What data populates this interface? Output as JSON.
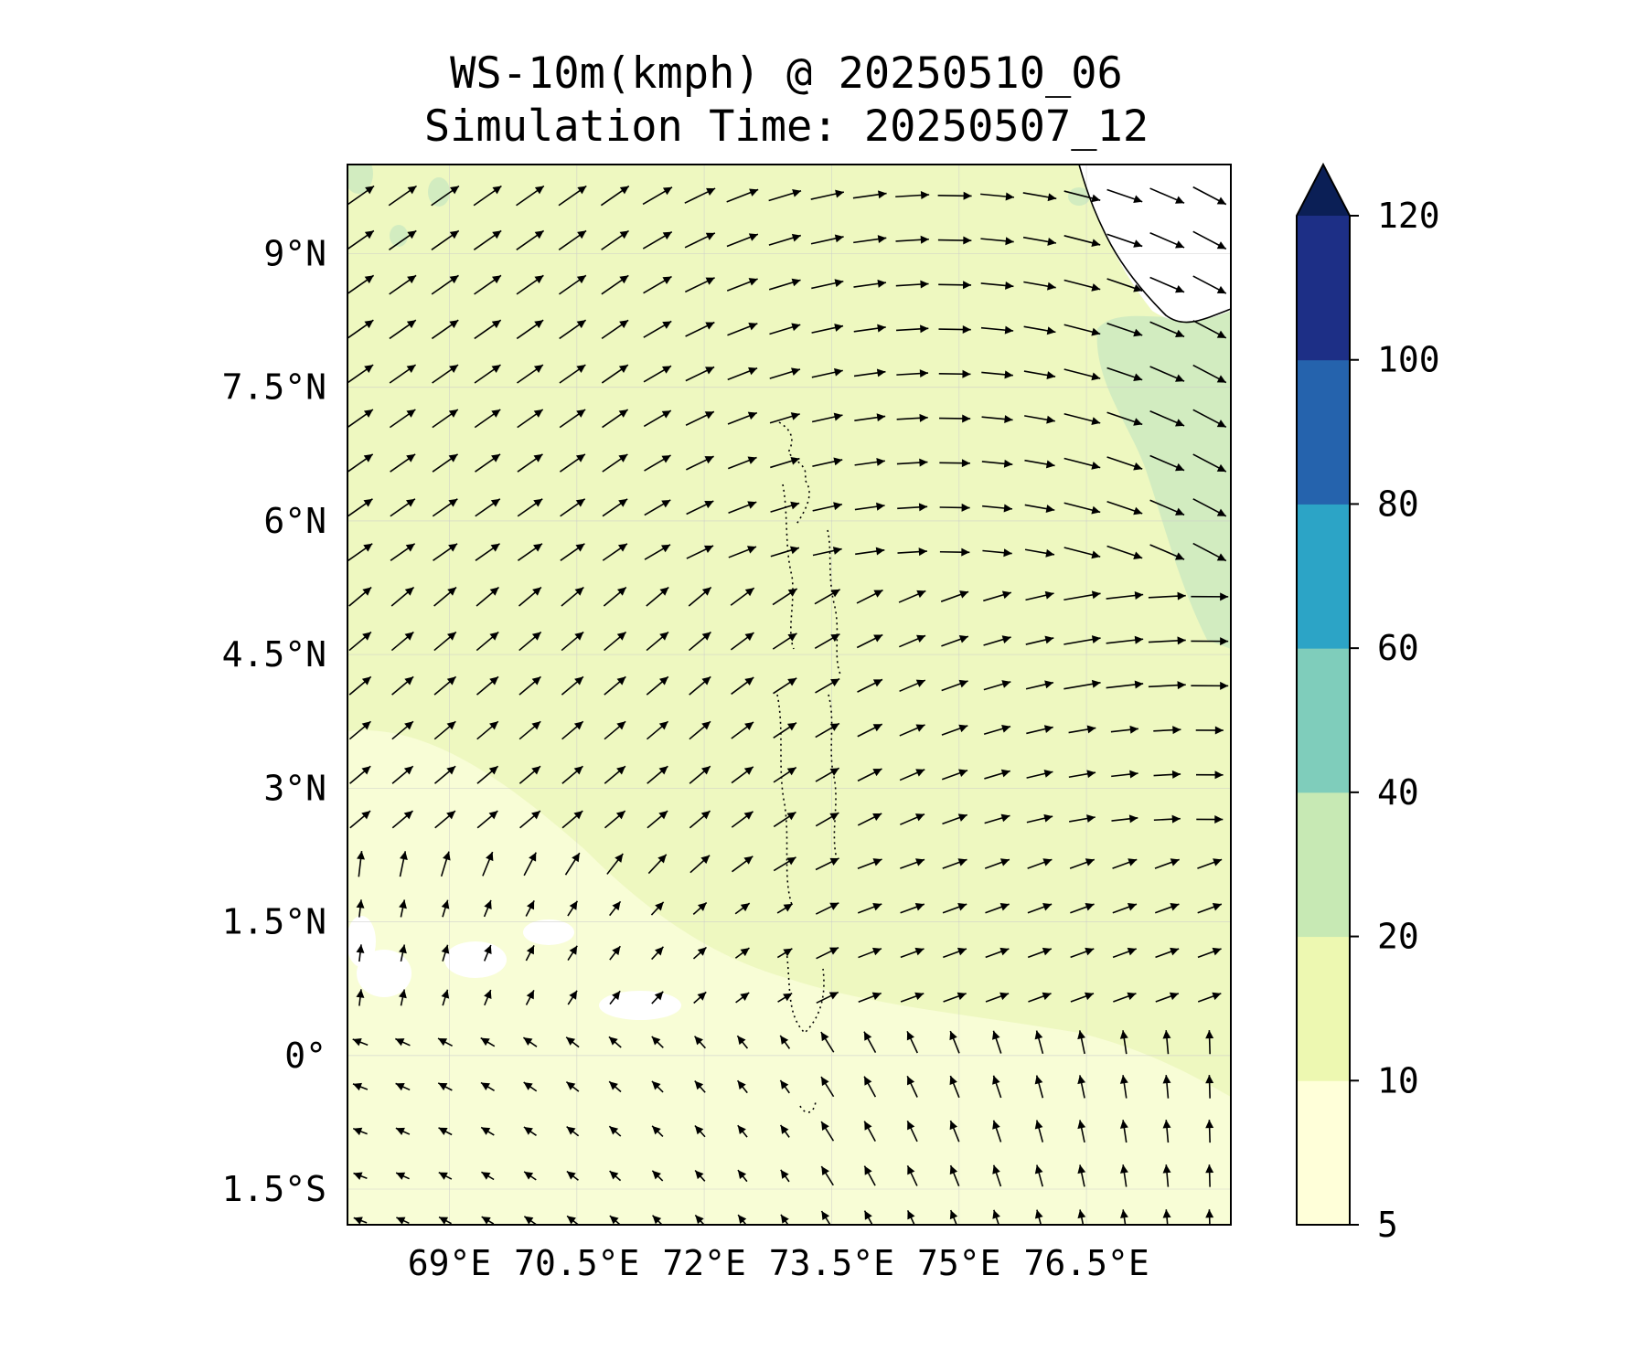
{
  "title": "WS-10m(kmph) @ 20250510_06",
  "subtitle": "Simulation Time: 20250507_12",
  "chart_data": {
    "type": "heatmap",
    "variable": "10 m wind speed with wind direction vectors",
    "lon_range": [
      67.8,
      78.2
    ],
    "lat_range": [
      -1.9,
      10.0
    ],
    "lon_ticks": [
      69,
      70.5,
      72,
      73.5,
      75,
      76.5
    ],
    "lon_tick_labels": [
      "69°E",
      "70.5°E",
      "72°E",
      "73.5°E",
      "75°E",
      "76.5°E"
    ],
    "lat_ticks": [
      9,
      7.5,
      6,
      4.5,
      3,
      1.5,
      0,
      -1.5
    ],
    "lat_tick_labels": [
      "9°N",
      "7.5°N",
      "6°N",
      "4.5°N",
      "3°N",
      "1.5°N",
      "0°",
      "1.5°S"
    ],
    "grid": true,
    "colorbar": {
      "levels": [
        5,
        10,
        20,
        40,
        60,
        80,
        100,
        120
      ],
      "tick_labels": [
        "5",
        "10",
        "20",
        "40",
        "60",
        "80",
        "100",
        "120"
      ],
      "colors": [
        "#ffffd9",
        "#edf8b1",
        "#c7e9b4",
        "#7fcdbb",
        "#2ca4c6",
        "#2563ad",
        "#1d2f86"
      ],
      "extend_color": "#0b1f56",
      "extend": "max"
    },
    "background_color": "#eef8c0",
    "light_region_color": "#f8fdd6",
    "strong_region_color": "#d2ecc0",
    "arrow_color": "#000000"
  }
}
